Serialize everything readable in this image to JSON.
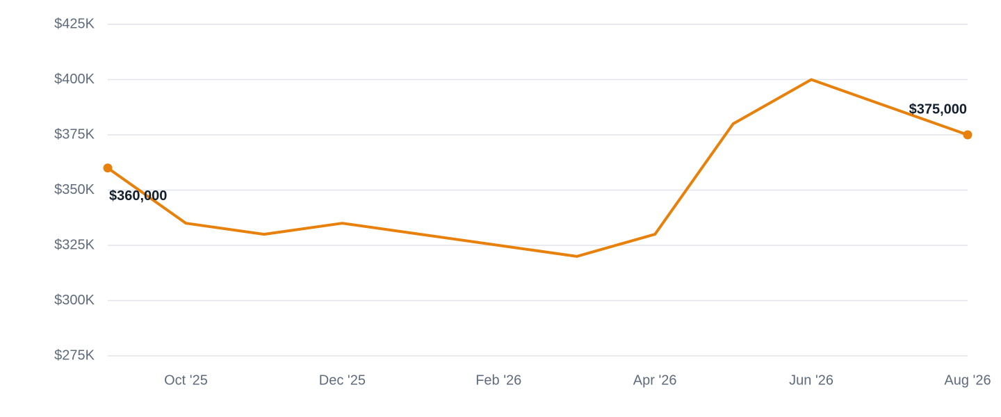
{
  "chart_data": {
    "type": "line",
    "categories": [
      null,
      "Oct '25",
      null,
      "Dec '25",
      null,
      "Feb '26",
      null,
      "Apr '26",
      null,
      "Jun '26",
      null,
      "Aug '26"
    ],
    "series": [
      {
        "color": "#e8800c",
        "values": [
          360000,
          335000,
          330000,
          335000,
          330000,
          325000,
          320000,
          330000,
          380000,
          400000,
          387500,
          375000
        ],
        "value_labels": [
          "$360,000",
          null,
          null,
          null,
          null,
          null,
          null,
          null,
          null,
          null,
          null,
          "$375,000"
        ]
      }
    ],
    "ylim": [
      275000,
      425000
    ],
    "yticks": [
      {
        "value": 275000,
        "label": "$275K"
      },
      {
        "value": 300000,
        "label": "$300K"
      },
      {
        "value": 325000,
        "label": "$325K"
      },
      {
        "value": 350000,
        "label": "$350K"
      },
      {
        "value": 375000,
        "label": "$375K"
      },
      {
        "value": 400000,
        "label": "$400K"
      },
      {
        "value": 425000,
        "label": "$425K"
      }
    ],
    "grid": true
  }
}
